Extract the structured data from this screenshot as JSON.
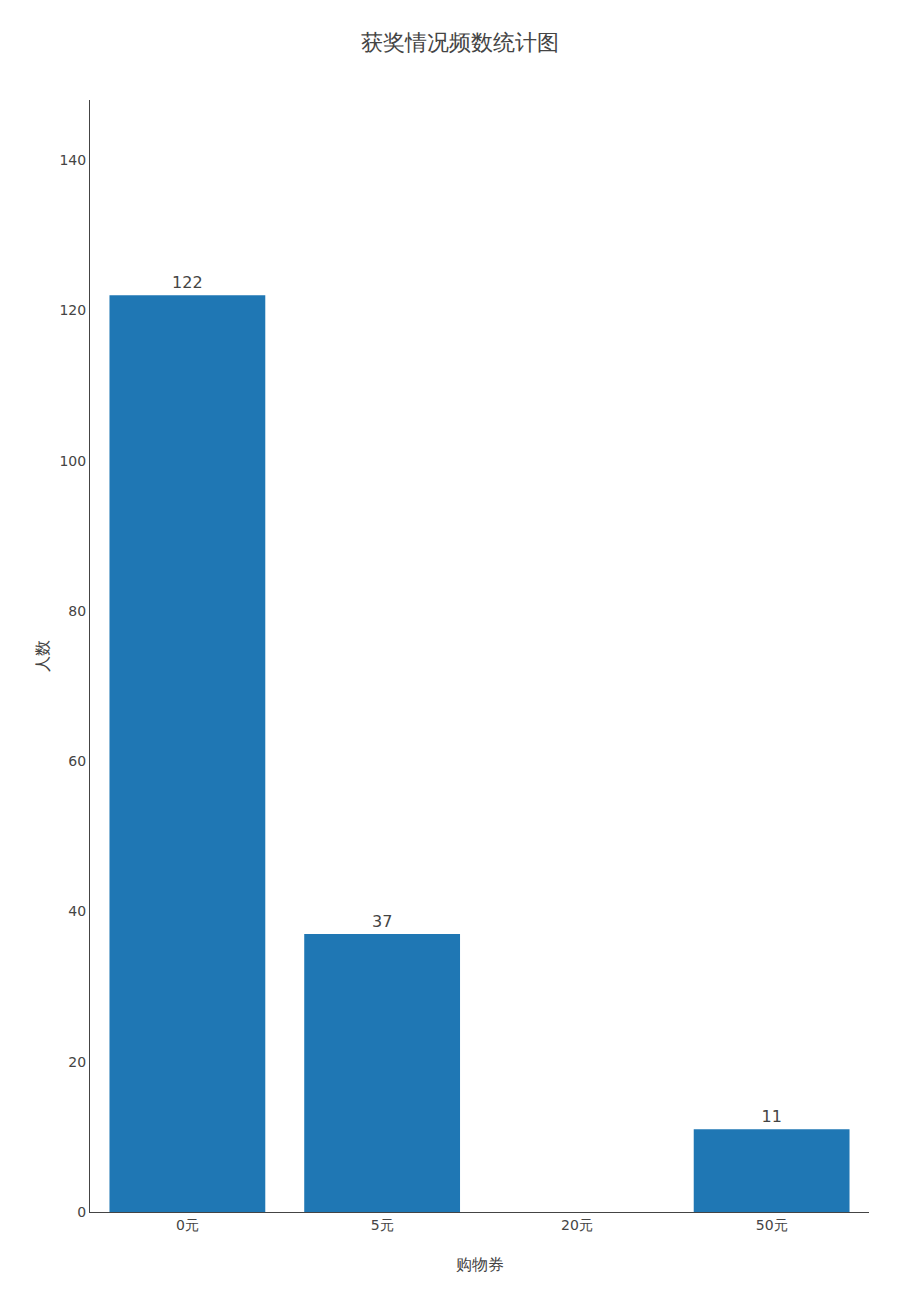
{
  "chart_data": {
    "type": "bar",
    "title": "获奖情况频数统计图",
    "xlabel": "购物券",
    "ylabel": "人数",
    "categories": [
      "0元",
      "5元",
      "20元",
      "50元"
    ],
    "values": [
      122,
      37,
      0,
      11
    ],
    "data_labels": true,
    "value_labels": [
      "122",
      "37",
      null,
      "11"
    ],
    "ylim": [
      0,
      148
    ],
    "yticks": [
      0,
      20,
      40,
      60,
      80,
      100,
      120,
      140
    ],
    "grid": false
  }
}
